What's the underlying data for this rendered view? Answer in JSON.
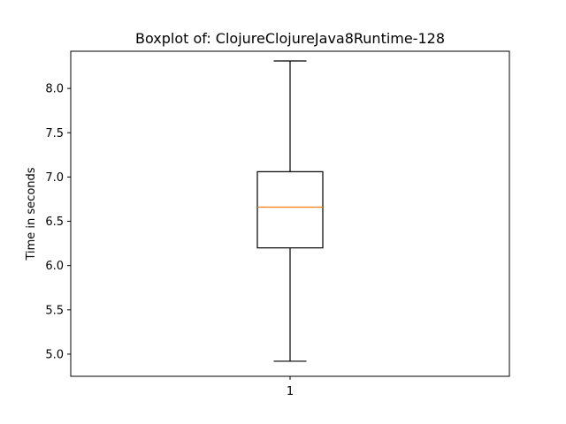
{
  "chart_data": {
    "type": "box",
    "title": "Boxplot of: ClojureClojureJava8Runtime-128",
    "xlabel": "",
    "ylabel": "Time in seconds",
    "categories": [
      "1"
    ],
    "ylim": [
      4.75,
      8.42
    ],
    "yticks": [
      5.0,
      5.5,
      6.0,
      6.5,
      7.0,
      7.5,
      8.0
    ],
    "ytick_labels": [
      "5.0",
      "5.5",
      "6.0",
      "6.5",
      "7.0",
      "7.5",
      "8.0"
    ],
    "boxes": [
      {
        "whisker_low": 4.92,
        "q1": 6.2,
        "median": 6.66,
        "q3": 7.06,
        "whisker_high": 8.31
      }
    ],
    "grid": false,
    "colors": {
      "median": "#ff7f0e",
      "box": "#000000",
      "axes": "#000000"
    }
  }
}
